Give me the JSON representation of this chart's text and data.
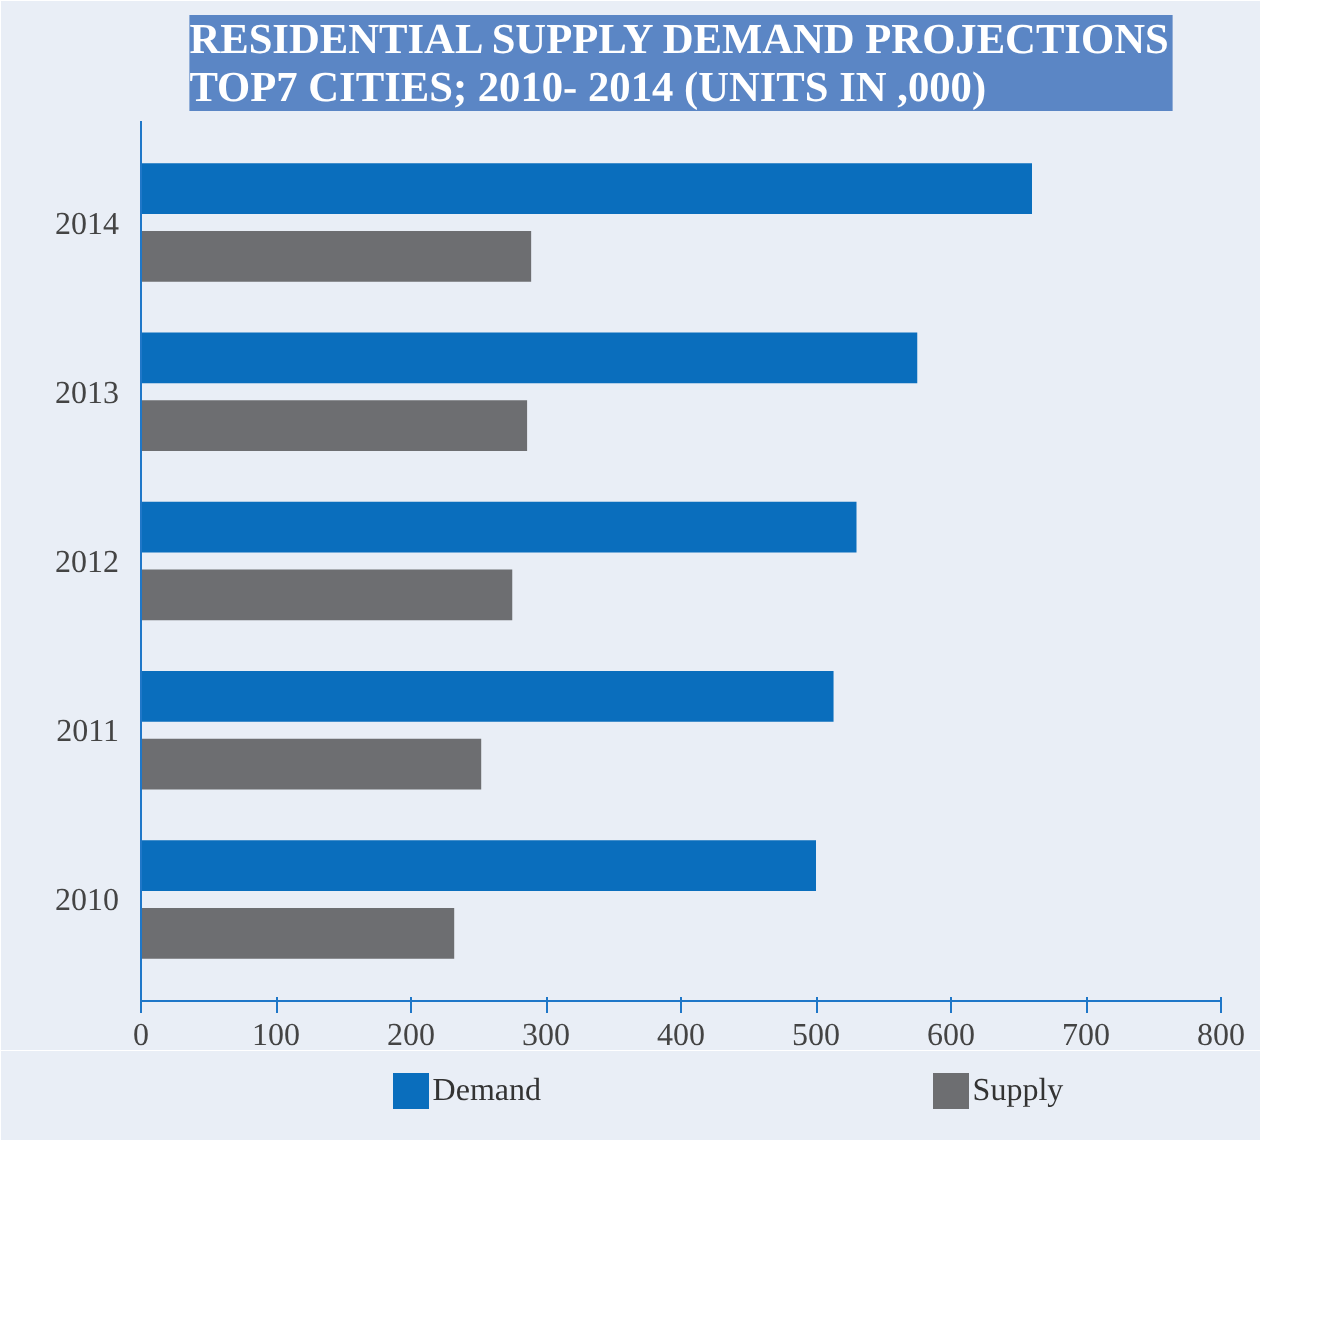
{
  "chart_data": {
    "type": "bar",
    "orientation": "horizontal",
    "title": "RESIDENTIAL SUPPLY DEMAND PROJECTIONS\nTOP7  CITIES; 2010-  2014 (UNITS IN ,000)",
    "categories": [
      "2014",
      "2013",
      "2012",
      "2011",
      "2010"
    ],
    "series": [
      {
        "name": "Demand",
        "color": "#0a6ebd",
        "values": [
          660,
          575,
          530,
          513,
          500
        ]
      },
      {
        "name": "Supply",
        "color": "#6d6e71",
        "values": [
          289,
          286,
          275,
          252,
          232
        ]
      }
    ],
    "xlim": [
      0,
      800
    ],
    "xticks": [
      0,
      100,
      200,
      300,
      400,
      500,
      600,
      700,
      800
    ],
    "grid": false,
    "legend": "bottom"
  }
}
